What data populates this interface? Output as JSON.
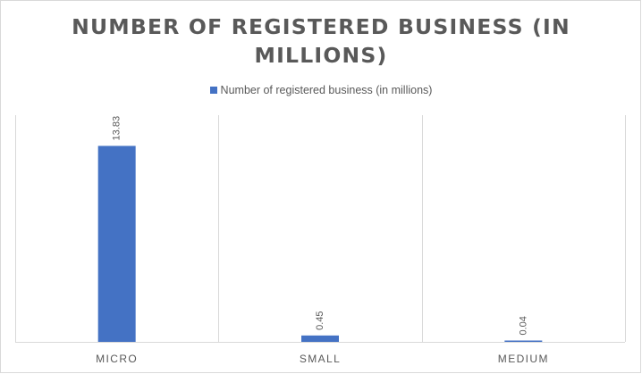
{
  "chart_data": {
    "type": "bar",
    "title": "NUMBER OF REGISTERED BUSINESS (IN MILLIONS)",
    "categories": [
      "MICRO",
      "SMALL",
      "MEDIUM"
    ],
    "series": [
      {
        "name": "Number of registered business (in millions)",
        "values": [
          13.83,
          0.45,
          0.04
        ],
        "color": "#4472c4"
      }
    ],
    "data_labels": [
      "13.83",
      "0.45",
      "0.04"
    ],
    "xlabel": "",
    "ylabel": "",
    "ylim": [
      0,
      16
    ],
    "grid": "vertical separators between categories",
    "legend": "top-center"
  }
}
